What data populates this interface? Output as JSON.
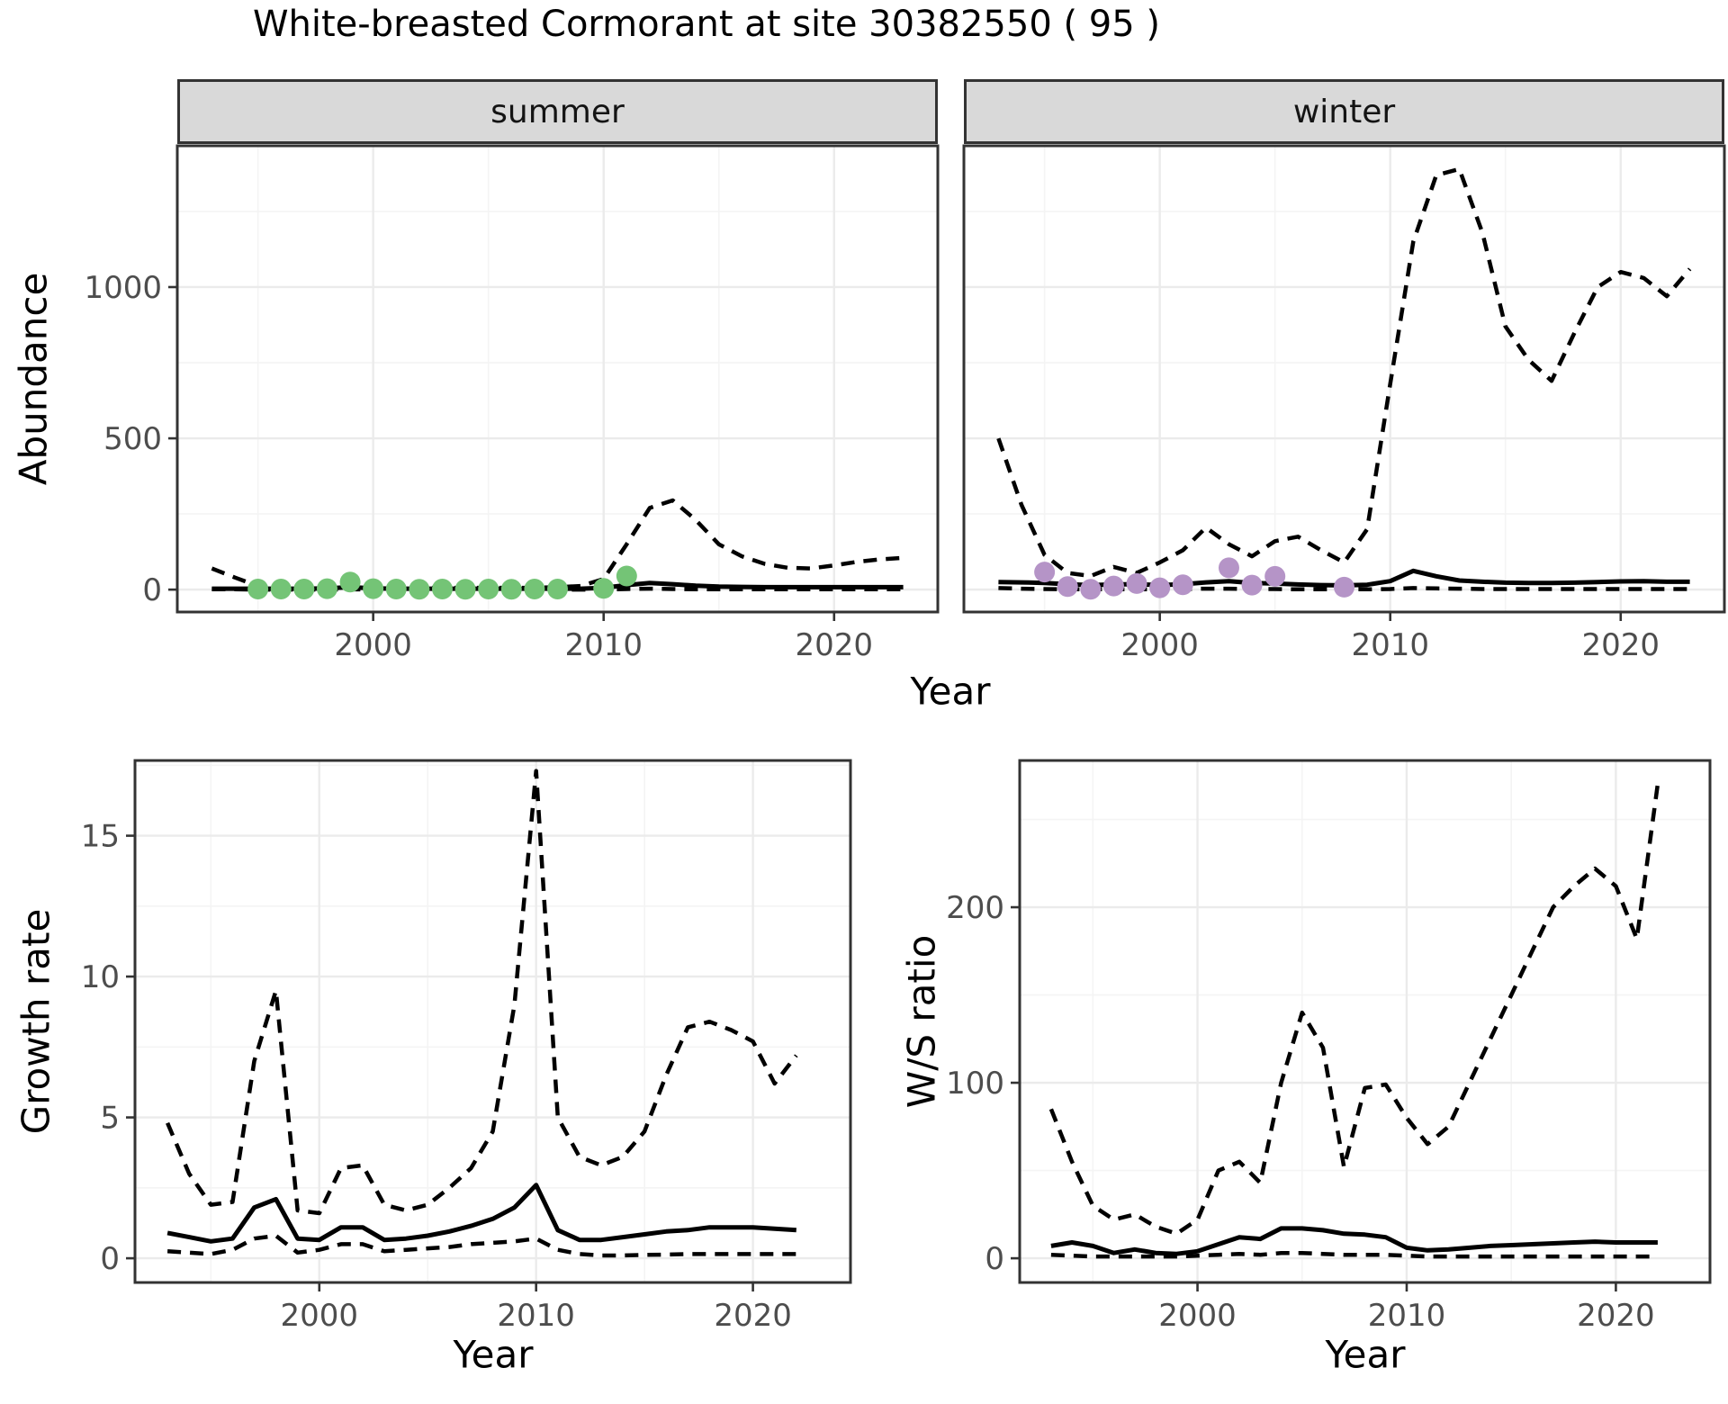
{
  "title": "White-breasted Cormorant at site 30382550 ( 95 )",
  "facets": {
    "summer": "summer",
    "winter": "winter"
  },
  "axes": {
    "abundance_label": "Abundance",
    "growth_label": "Growth rate",
    "ws_label": "W/S ratio",
    "year_label": "Year"
  },
  "colors": {
    "background": "#FFFFFF",
    "summer_point": "#74C476",
    "winter_point": "#B594C7",
    "strip_bg": "#D9D9D9",
    "grid_major": "#EBEBEB",
    "grid_minor": "#F4F4F4",
    "panel_border": "#333333",
    "tick_mark": "#333333",
    "tick_text": "#4D4D4D",
    "line": "#000000"
  },
  "chart_data": [
    {
      "id": "abundance-summer",
      "type": "line",
      "facet_label": "summer",
      "ylabel": "Abundance",
      "xlabel": "Year",
      "x_ticks": [
        2000,
        2010,
        2020
      ],
      "y_ticks": [
        0,
        500,
        1000
      ],
      "show_y_tick_labels": true,
      "x": [
        1993,
        1994,
        1995,
        1996,
        1997,
        1998,
        1999,
        2000,
        2001,
        2002,
        2003,
        2004,
        2005,
        2006,
        2007,
        2008,
        2009,
        2010,
        2011,
        2012,
        2013,
        2014,
        2015,
        2016,
        2017,
        2018,
        2019,
        2020,
        2021,
        2022,
        2023
      ],
      "series": [
        {
          "name": "estimate",
          "style": "solid",
          "values": [
            3,
            3,
            3,
            3,
            3,
            4,
            8,
            4,
            3,
            3,
            3,
            3,
            3,
            3,
            3,
            3,
            3,
            6,
            15,
            22,
            18,
            13,
            10,
            9,
            8,
            8,
            8,
            8,
            8,
            8,
            8
          ]
        },
        {
          "name": "upper-ci",
          "style": "dashed",
          "values": [
            70,
            40,
            12,
            6,
            6,
            8,
            28,
            8,
            6,
            6,
            6,
            6,
            6,
            6,
            6,
            8,
            12,
            35,
            150,
            270,
            295,
            230,
            150,
            110,
            85,
            72,
            70,
            80,
            92,
            100,
            105
          ]
        },
        {
          "name": "lower-ci",
          "style": "dashed",
          "values": [
            1,
            1,
            0,
            0,
            0,
            0,
            1,
            0,
            0,
            0,
            0,
            0,
            0,
            0,
            0,
            0,
            0,
            0,
            2,
            3,
            2,
            1,
            1,
            1,
            1,
            1,
            1,
            1,
            1,
            1,
            1
          ]
        }
      ],
      "points": {
        "name": "observed-counts-summer",
        "color_key": "summer_point",
        "data": [
          [
            1995,
            2
          ],
          [
            1996,
            2
          ],
          [
            1997,
            2
          ],
          [
            1998,
            3
          ],
          [
            1999,
            25
          ],
          [
            2000,
            3
          ],
          [
            2001,
            2
          ],
          [
            2002,
            1
          ],
          [
            2003,
            2
          ],
          [
            2004,
            1
          ],
          [
            2005,
            2
          ],
          [
            2006,
            1
          ],
          [
            2007,
            2
          ],
          [
            2008,
            2
          ],
          [
            2010,
            4
          ],
          [
            2011,
            45
          ]
        ]
      }
    },
    {
      "id": "abundance-winter",
      "type": "line",
      "facet_label": "winter",
      "ylabel": "Abundance",
      "xlabel": "Year",
      "x_ticks": [
        2000,
        2010,
        2020
      ],
      "y_ticks": [
        0,
        500,
        1000
      ],
      "show_y_tick_labels": false,
      "x": [
        1993,
        1994,
        1995,
        1996,
        1997,
        1998,
        1999,
        2000,
        2001,
        2002,
        2003,
        2004,
        2005,
        2006,
        2007,
        2008,
        2009,
        2010,
        2011,
        2012,
        2013,
        2014,
        2015,
        2016,
        2017,
        2018,
        2019,
        2020,
        2021,
        2022,
        2023
      ],
      "series": [
        {
          "name": "estimate",
          "style": "solid",
          "values": [
            25,
            24,
            22,
            18,
            15,
            17,
            18,
            15,
            18,
            24,
            28,
            22,
            20,
            17,
            15,
            14,
            16,
            28,
            62,
            44,
            30,
            26,
            23,
            22,
            22,
            23,
            25,
            27,
            28,
            26,
            26
          ]
        },
        {
          "name": "upper-ci",
          "style": "dashed",
          "values": [
            500,
            280,
            115,
            55,
            45,
            75,
            55,
            90,
            130,
            205,
            150,
            110,
            160,
            175,
            130,
            90,
            200,
            680,
            1150,
            1370,
            1390,
            1180,
            870,
            760,
            690,
            850,
            1000,
            1050,
            1030,
            970,
            1060
          ]
        },
        {
          "name": "lower-ci",
          "style": "dashed",
          "values": [
            5,
            3,
            2,
            1,
            1,
            1,
            1,
            1,
            2,
            3,
            3,
            2,
            2,
            1,
            1,
            1,
            1,
            2,
            5,
            4,
            3,
            2,
            2,
            2,
            2,
            2,
            2,
            2,
            2,
            2,
            2
          ]
        }
      ],
      "points": {
        "name": "observed-counts-winter",
        "color_key": "winter_point",
        "data": [
          [
            1995,
            58
          ],
          [
            1996,
            10
          ],
          [
            1997,
            1
          ],
          [
            1998,
            12
          ],
          [
            1999,
            20
          ],
          [
            2000,
            6
          ],
          [
            2001,
            16
          ],
          [
            2003,
            72
          ],
          [
            2004,
            15
          ],
          [
            2005,
            44
          ],
          [
            2008,
            8
          ]
        ]
      }
    },
    {
      "id": "growth-rate",
      "type": "line",
      "ylabel": "Growth rate",
      "xlabel": "Year",
      "x_ticks": [
        2000,
        2010,
        2020
      ],
      "y_ticks": [
        0,
        5,
        10,
        15
      ],
      "show_y_tick_labels": true,
      "x": [
        1993,
        1994,
        1995,
        1996,
        1997,
        1998,
        1999,
        2000,
        2001,
        2002,
        2003,
        2004,
        2005,
        2006,
        2007,
        2008,
        2009,
        2010,
        2011,
        2012,
        2013,
        2014,
        2015,
        2016,
        2017,
        2018,
        2019,
        2020,
        2021,
        2022
      ],
      "series": [
        {
          "name": "estimate",
          "style": "solid",
          "values": [
            0.9,
            0.75,
            0.6,
            0.7,
            1.8,
            2.1,
            0.7,
            0.65,
            1.1,
            1.1,
            0.65,
            0.7,
            0.8,
            0.95,
            1.15,
            1.4,
            1.8,
            2.6,
            1.0,
            0.65,
            0.65,
            0.75,
            0.85,
            0.95,
            1.0,
            1.1,
            1.1,
            1.1,
            1.05,
            1.0
          ]
        },
        {
          "name": "upper-ci",
          "style": "dashed",
          "values": [
            4.8,
            3.0,
            1.9,
            2.0,
            7.0,
            9.5,
            1.7,
            1.6,
            3.2,
            3.3,
            1.9,
            1.7,
            1.9,
            2.5,
            3.2,
            4.5,
            9.0,
            17.3,
            5.0,
            3.6,
            3.3,
            3.6,
            4.5,
            6.5,
            8.2,
            8.4,
            8.1,
            7.7,
            6.2,
            7.2
          ]
        },
        {
          "name": "lower-ci",
          "style": "dashed",
          "values": [
            0.25,
            0.2,
            0.15,
            0.3,
            0.7,
            0.8,
            0.2,
            0.3,
            0.5,
            0.5,
            0.25,
            0.3,
            0.35,
            0.4,
            0.5,
            0.55,
            0.6,
            0.7,
            0.3,
            0.15,
            0.1,
            0.1,
            0.12,
            0.13,
            0.15,
            0.15,
            0.15,
            0.15,
            0.15,
            0.15
          ]
        }
      ]
    },
    {
      "id": "ws-ratio",
      "type": "line",
      "ylabel": "W/S ratio",
      "xlabel": "Year",
      "x_ticks": [
        2000,
        2010,
        2020
      ],
      "y_ticks": [
        0,
        100,
        200
      ],
      "show_y_tick_labels": true,
      "x": [
        1993,
        1994,
        1995,
        1996,
        1997,
        1998,
        1999,
        2000,
        2001,
        2002,
        2003,
        2004,
        2005,
        2006,
        2007,
        2008,
        2009,
        2010,
        2011,
        2012,
        2013,
        2014,
        2015,
        2016,
        2017,
        2018,
        2019,
        2020,
        2021,
        2022
      ],
      "series": [
        {
          "name": "estimate",
          "style": "solid",
          "values": [
            7,
            9,
            7,
            3,
            5,
            3,
            2.5,
            4,
            8,
            12,
            11,
            17,
            17,
            16,
            14,
            13.5,
            12,
            6,
            4.5,
            5,
            6,
            7,
            7.5,
            8,
            8.5,
            9,
            9.5,
            9,
            9,
            9
          ]
        },
        {
          "name": "upper-ci",
          "style": "dashed",
          "values": [
            85,
            55,
            30,
            22,
            25,
            18,
            14,
            22,
            50,
            55,
            43,
            100,
            140,
            120,
            52,
            97,
            99,
            80,
            65,
            75,
            100,
            125,
            150,
            175,
            200,
            212,
            222,
            212,
            182,
            270
          ]
        },
        {
          "name": "lower-ci",
          "style": "dashed",
          "values": [
            2,
            1.5,
            1,
            1,
            1,
            1,
            1,
            1.5,
            2,
            2.5,
            2,
            3,
            3,
            2.5,
            2,
            2,
            2,
            1.5,
            1,
            1,
            1,
            1,
            1,
            1,
            1,
            1,
            1,
            1,
            1,
            1
          ]
        }
      ]
    }
  ]
}
